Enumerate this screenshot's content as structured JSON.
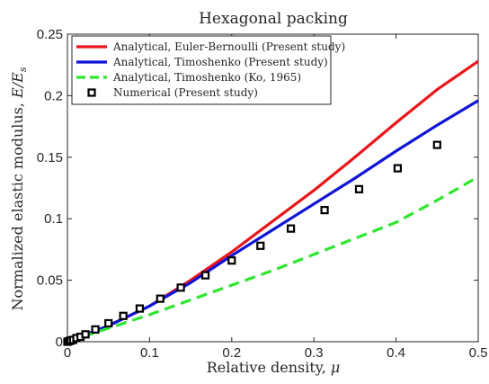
{
  "chart_data": {
    "type": "line",
    "title": "Hexagonal packing",
    "xlabel": "Relative density, μ",
    "ylabel": "Normalized elastic modulus, E/Es",
    "xlim": [
      0,
      0.5
    ],
    "ylim": [
      0,
      0.25
    ],
    "xticks": [
      "0",
      "0.1",
      "0.2",
      "0.3",
      "0.4",
      "0.5"
    ],
    "yticks": [
      "0",
      "0.05",
      "0.1",
      "0.15",
      "0.2",
      "0.25"
    ],
    "xtick_values": [
      0,
      0.1,
      0.2,
      0.3,
      0.4,
      0.5
    ],
    "ytick_values": [
      0,
      0.05,
      0.1,
      0.15,
      0.2,
      0.25
    ],
    "grid": false,
    "legend_position": "top-left",
    "series": [
      {
        "name": "Analytical, Euler-Bernoulli (Present study)",
        "style": "solid",
        "color": "#e8161a",
        "x": [
          0,
          0.05,
          0.1,
          0.15,
          0.2,
          0.25,
          0.3,
          0.35,
          0.4,
          0.45,
          0.5
        ],
        "y": [
          0,
          0.013,
          0.029,
          0.05,
          0.073,
          0.098,
          0.123,
          0.15,
          0.178,
          0.205,
          0.228
        ]
      },
      {
        "name": "Analytical, Timoshenko (Present study)",
        "style": "solid",
        "color": "#0f15d6",
        "x": [
          0,
          0.05,
          0.1,
          0.15,
          0.2,
          0.25,
          0.3,
          0.35,
          0.4,
          0.45,
          0.5
        ],
        "y": [
          0,
          0.013,
          0.029,
          0.048,
          0.07,
          0.091,
          0.112,
          0.133,
          0.155,
          0.176,
          0.196
        ]
      },
      {
        "name": "Analytical, Timoshenko (Ko, 1965)",
        "style": "dashed",
        "color": "#2ee62e",
        "x": [
          0,
          0.05,
          0.1,
          0.15,
          0.2,
          0.25,
          0.3,
          0.35,
          0.4,
          0.45,
          0.5
        ],
        "y": [
          0,
          0.011,
          0.022,
          0.034,
          0.046,
          0.058,
          0.071,
          0.084,
          0.097,
          0.115,
          0.134
        ]
      },
      {
        "name": "Numerical (Present study)",
        "style": "markers",
        "color": "#000000",
        "x": [
          0,
          0.002,
          0.004,
          0.007,
          0.011,
          0.016,
          0.022,
          0.034,
          0.05,
          0.068,
          0.088,
          0.113,
          0.138,
          0.168,
          0.2,
          0.235,
          0.272,
          0.313,
          0.355,
          0.402,
          0.45
        ],
        "y": [
          0,
          0.0005,
          0.001,
          0.0015,
          0.003,
          0.004,
          0.006,
          0.01,
          0.015,
          0.021,
          0.027,
          0.035,
          0.044,
          0.054,
          0.066,
          0.078,
          0.092,
          0.107,
          0.124,
          0.141,
          0.16
        ]
      }
    ]
  }
}
